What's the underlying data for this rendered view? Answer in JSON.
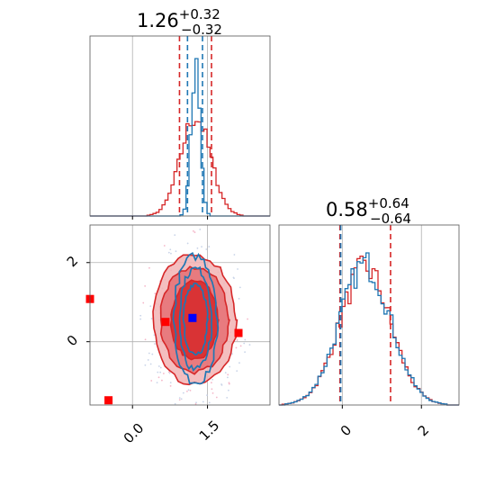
{
  "chart_data": [
    {
      "type": "histogram",
      "panel": "marginal-x",
      "title": {
        "value": "1.26",
        "plus": "+0.32",
        "minus": "−0.32"
      },
      "xlim": [
        -0.85,
        2.75
      ],
      "grid": true,
      "series": [
        {
          "name": "",
          "color": "#1f77b4",
          "center": 1.26,
          "sigma": 0.09,
          "peak": 0.82
        },
        {
          "name": "",
          "color": "#d62728",
          "center": 1.26,
          "sigma": 0.3,
          "peak": 0.55
        }
      ],
      "quantile_lines": [
        {
          "x": 0.94,
          "color": "#d62728"
        },
        {
          "x": 1.1,
          "color": "#1f77b4"
        },
        {
          "x": 1.4,
          "color": "#1f77b4"
        },
        {
          "x": 1.58,
          "color": "#d62728"
        }
      ]
    },
    {
      "type": "contour",
      "panel": "joint",
      "xlim": [
        -0.85,
        2.75
      ],
      "ylim": [
        -1.6,
        2.95
      ],
      "xticks": [
        "0.0",
        "1.5"
      ],
      "yticks": [
        "0",
        "2"
      ],
      "grid": true,
      "markers": [
        {
          "x": -0.85,
          "y": 1.08,
          "color": "#ff0000"
        },
        {
          "x": -0.48,
          "y": -1.48,
          "color": "#ff0000"
        },
        {
          "x": 0.66,
          "y": 0.5,
          "color": "#ff0000"
        },
        {
          "x": 2.12,
          "y": 0.22,
          "color": "#ff0000"
        },
        {
          "x": 1.2,
          "y": 0.6,
          "color": "#0000ff"
        }
      ],
      "contours": [
        {
          "color": "#d62728",
          "fill": "#f0a0a2",
          "center": [
            1.24,
            0.55
          ],
          "radii": [
            1.6,
            0.96,
            0.6
          ]
        },
        {
          "color": "#1f77b4",
          "center": [
            1.26,
            0.57
          ],
          "radii": [
            0.45,
            1.0
          ]
        }
      ]
    },
    {
      "type": "histogram",
      "panel": "marginal-y",
      "title": {
        "value": "0.58",
        "plus": "+0.64",
        "minus": "−0.64"
      },
      "xlim": [
        -1.6,
        2.95
      ],
      "xticks": [
        "0",
        "2"
      ],
      "grid": true,
      "series": [
        {
          "name": "",
          "color": "#1f77b4",
          "center": 0.58,
          "sigma": 0.64,
          "peak": 0.78
        },
        {
          "name": "",
          "color": "#d62728",
          "center": 0.58,
          "sigma": 0.64,
          "peak": 0.76
        }
      ],
      "quantile_lines": [
        {
          "x": -0.06,
          "color": "#d62728"
        },
        {
          "x": -0.04,
          "color": "#1f77b4"
        },
        {
          "x": 1.22,
          "color": "#d62728"
        }
      ]
    }
  ],
  "colors": {
    "blue": "#1f77b4",
    "red": "#d62728",
    "grid": "#b0b0b0"
  }
}
